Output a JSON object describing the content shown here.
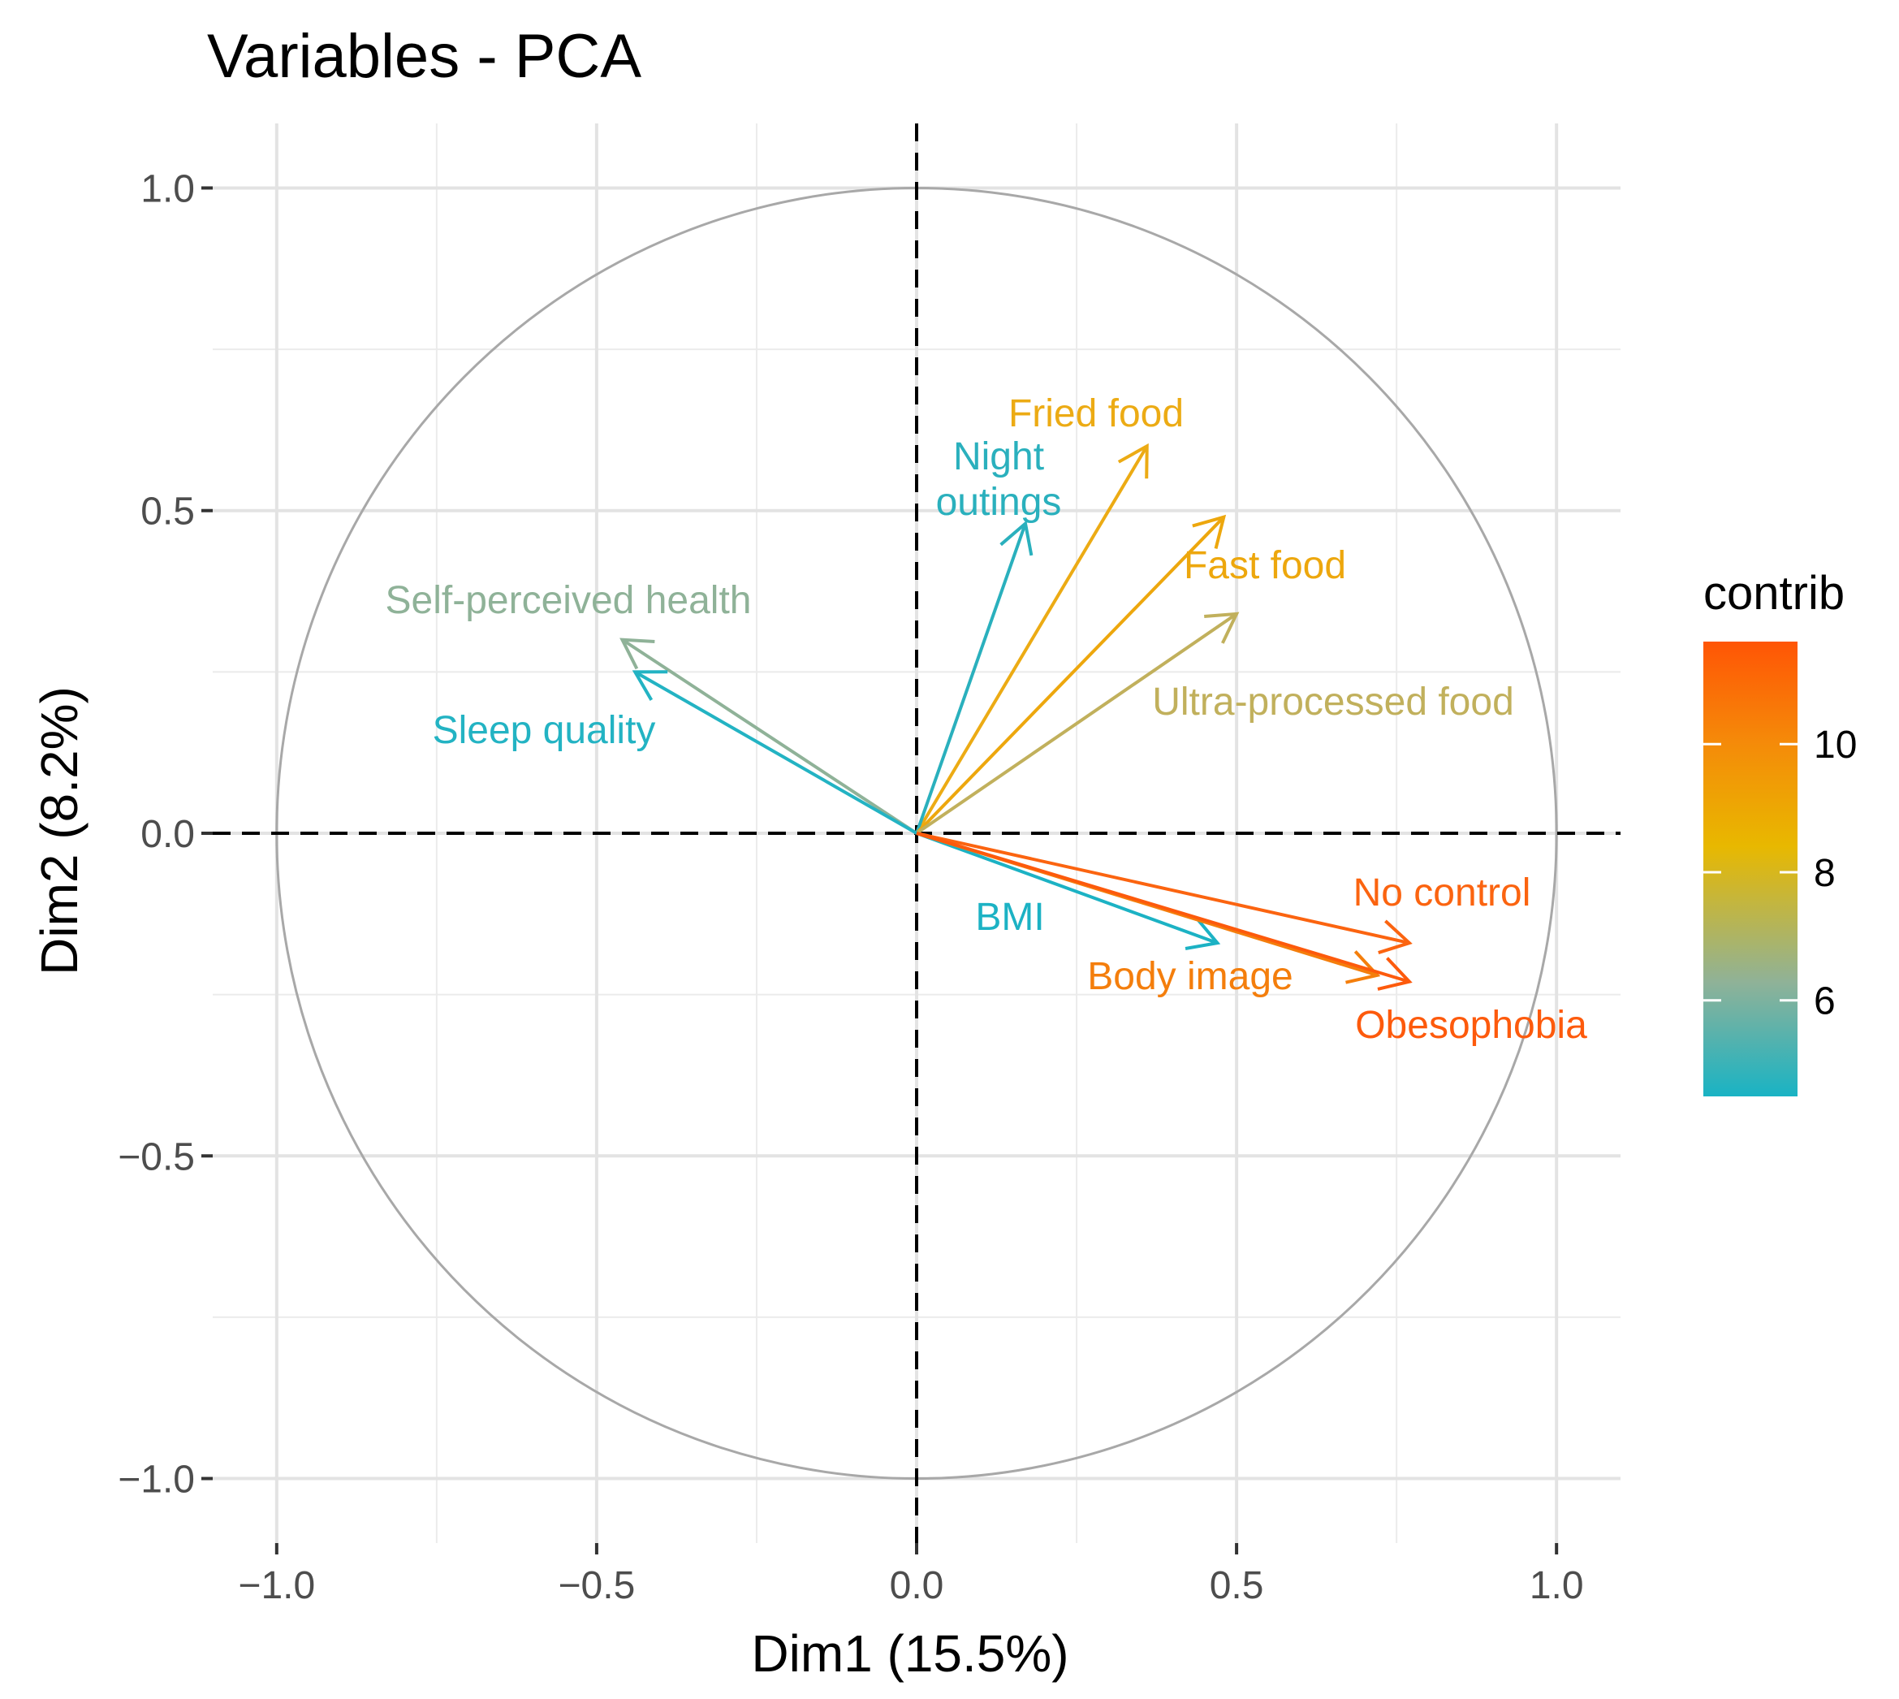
{
  "chart_data": {
    "type": "pca-variable-correlation-circle",
    "title": "Variables - PCA",
    "xlabel": "Dim1 (15.5%)",
    "ylabel": "Dim2 (8.2%)",
    "xlim": [
      -1.1,
      1.1
    ],
    "ylim": [
      -1.1,
      1.1
    ],
    "xticks": [
      -1.0,
      -0.5,
      0.0,
      0.5,
      1.0
    ],
    "yticks": [
      -1.0,
      -0.5,
      0.0,
      0.5,
      1.0
    ],
    "xtick_labels": [
      "−1.0",
      "−0.5",
      "0.0",
      "0.5",
      "1.0"
    ],
    "ytick_labels": [
      "−1.0",
      "−0.5",
      "0.0",
      "0.5",
      "1.0"
    ],
    "grid": true,
    "unit_circle": true,
    "legend": {
      "title": "contrib",
      "position": "right",
      "range": [
        4.5,
        11.6
      ],
      "ticks": [
        6,
        8,
        10
      ],
      "tick_labels": [
        "6",
        "8",
        "10"
      ],
      "colors": [
        "#19b3c4",
        "#e8b800",
        "#ff5505"
      ]
    },
    "variables": [
      {
        "name": "Fried food",
        "label_lines": [
          "Fried food"
        ],
        "x": 0.36,
        "y": 0.6,
        "contrib": 8.3,
        "color": "#ecab14"
      },
      {
        "name": "Night outings",
        "label_lines": [
          "Night",
          "outings"
        ],
        "x": 0.17,
        "y": 0.48,
        "contrib": 5.0,
        "color": "#2ab0bd"
      },
      {
        "name": "Fast food",
        "label_lines": [
          "Fast food"
        ],
        "x": 0.48,
        "y": 0.49,
        "contrib": 8.8,
        "color": "#eda70d"
      },
      {
        "name": "Ultra-processed food",
        "label_lines": [
          "Ultra-processed food"
        ],
        "x": 0.5,
        "y": 0.34,
        "contrib": 7.0,
        "color": "#c1b05c"
      },
      {
        "name": "Self-perceived health",
        "label_lines": [
          "Self-perceived health"
        ],
        "x": -0.46,
        "y": 0.3,
        "contrib": 6.0,
        "color": "#8fb298"
      },
      {
        "name": "Sleep quality",
        "label_lines": [
          "Sleep quality"
        ],
        "x": -0.44,
        "y": 0.25,
        "contrib": 4.9,
        "color": "#23b3c3"
      },
      {
        "name": "BMI",
        "label_lines": [
          "BMI"
        ],
        "x": 0.47,
        "y": -0.17,
        "contrib": 4.8,
        "color": "#1cb2c4"
      },
      {
        "name": "No control",
        "label_lines": [
          "No control"
        ],
        "x": 0.77,
        "y": -0.17,
        "contrib": 11.1,
        "color": "#fb6410"
      },
      {
        "name": "Body image",
        "label_lines": [
          "Body image"
        ],
        "x": 0.72,
        "y": -0.22,
        "contrib": 10.2,
        "color": "#f47e0c"
      },
      {
        "name": "Obesophobia",
        "label_lines": [
          "Obesophobia"
        ],
        "x": 0.77,
        "y": -0.23,
        "contrib": 11.5,
        "color": "#fd5a0c"
      }
    ]
  }
}
